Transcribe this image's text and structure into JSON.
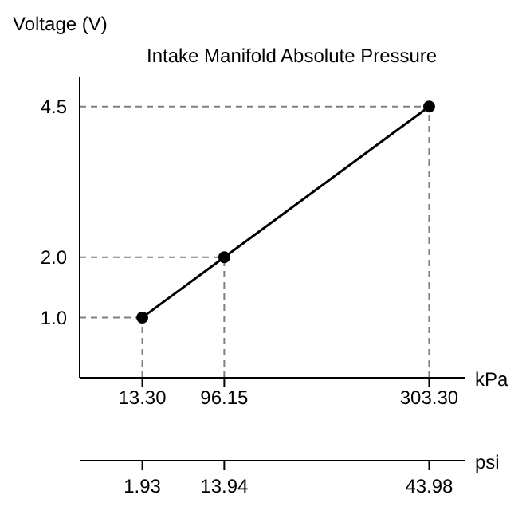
{
  "chart_data": {
    "type": "line",
    "title": "Intake Manifold Absolute Pressure",
    "ylabel": "Voltage (V)",
    "xlabel": "kPa",
    "x2label": "psi",
    "series": [
      {
        "color": "#000000",
        "x": [
          13.3,
          96.15,
          303.3
        ],
        "values": [
          1.0,
          2.0,
          4.5
        ]
      }
    ],
    "xlim": [
      -50,
      340
    ],
    "xticks": [
      {
        "value": 13.3,
        "label": "13.30"
      },
      {
        "value": 96.15,
        "label": "96.15"
      },
      {
        "value": 303.3,
        "label": "303.30"
      }
    ],
    "x2lim": [
      -7.25,
      49.3
    ],
    "x2ticks": [
      1.93,
      13.94,
      43.98
    ],
    "ylim": [
      0,
      5
    ],
    "yticks": [
      {
        "value": 1,
        "label": "1.0"
      },
      {
        "value": 2,
        "label": "2.0"
      },
      4.5
    ],
    "marker": "circle",
    "line_style": "solid",
    "ref_lines": [
      {
        "axis": "x",
        "value": 13.3,
        "line_style": "dashed",
        "color": "#808080"
      },
      {
        "axis": "x",
        "value": 96.15,
        "line_style": "dashed",
        "color": "#808080"
      },
      {
        "axis": "x",
        "value": 303.3,
        "line_style": "dashed",
        "color": "#808080"
      },
      {
        "axis": "y",
        "value": 1,
        "line_style": "dashed",
        "color": "#808080"
      },
      {
        "axis": "y",
        "value": 2,
        "line_style": "dashed",
        "color": "#808080"
      },
      {
        "axis": "y",
        "value": 4.5,
        "line_style": "dashed",
        "color": "#808080"
      }
    ]
  }
}
